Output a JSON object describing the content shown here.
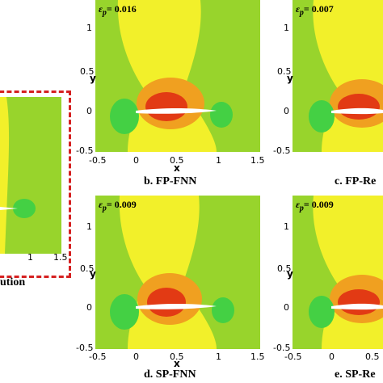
{
  "panels": {
    "b": {
      "caption": "b. FP-FNN",
      "error_symbol": "ε",
      "error_sub": "p",
      "error_value": "= 0.016"
    },
    "c": {
      "caption": "c. FP-Re",
      "error_symbol": "ε",
      "error_sub": "p",
      "error_value": "= 0.007"
    },
    "d": {
      "caption": "d. SP-FNN",
      "error_symbol": "ε",
      "error_sub": "p",
      "error_value": "= 0.009"
    },
    "e": {
      "caption": "e. SP-Re",
      "error_symbol": "ε",
      "error_sub": "p",
      "error_value": "= 0.009"
    },
    "a": {
      "caption": "ution"
    }
  },
  "axes": {
    "xlabel": "x",
    "ylabel": "y",
    "x_ticks": [
      "-0.5",
      "0",
      "0.5",
      "1",
      "1.5"
    ],
    "y_ticks": [
      "1",
      "0.5",
      "0",
      "-0.5"
    ],
    "partial_x_ticks": [
      "1",
      "1.5"
    ]
  },
  "colors": {
    "background": "#98d42c",
    "yellow": "#f2f02a",
    "orange": "#f0a020",
    "red": "#e23a14",
    "green": "#44d044",
    "frame": "#d52020"
  }
}
